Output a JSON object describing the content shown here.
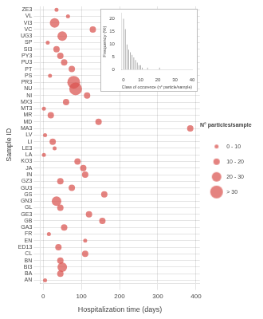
{
  "chart_data": [
    {
      "type": "scatter",
      "xlabel": "Hospitalization time (days)",
      "ylabel": "Sample ID",
      "categories": [
        "ZE3",
        "VL",
        "VI3",
        "VC",
        "UG3",
        "SP",
        "SI3",
        "PY3",
        "PU3",
        "PT",
        "PS",
        "PR3",
        "NU",
        "NI",
        "MX3",
        "MT3",
        "MR",
        "MD",
        "MA3",
        "LV",
        "LI",
        "LE3",
        "LA",
        "KO3",
        "JA",
        "IN",
        "GZ3",
        "GU3",
        "GS",
        "GN3",
        "GL",
        "GE3",
        "GB",
        "GA3",
        "FR",
        "EN",
        "ED13",
        "CL",
        "BN",
        "BI3",
        "BA",
        "AN"
      ],
      "values": [
        35,
        65,
        30,
        130,
        50,
        12,
        35,
        45,
        55,
        75,
        18,
        80,
        85,
        115,
        60,
        2,
        20,
        145,
        385,
        5,
        25,
        30,
        2,
        90,
        105,
        110,
        45,
        75,
        160,
        35,
        45,
        120,
        155,
        55,
        15,
        110,
        40,
        110,
        45,
        50,
        45,
        5
      ],
      "sizes": [
        8,
        5,
        22,
        12,
        25,
        8,
        12,
        14,
        14,
        12,
        5,
        35,
        32,
        10,
        18,
        3,
        12,
        14,
        14,
        8,
        10,
        8,
        3,
        12,
        10,
        12,
        14,
        10,
        10,
        22,
        14,
        18,
        10,
        14,
        8,
        8,
        18,
        10,
        16,
        28,
        12,
        3
      ],
      "size_bins": [
        {
          "name": "0 - 10",
          "min": 0,
          "max": 10
        },
        {
          "name": "10 - 20",
          "min": 10,
          "max": 20
        },
        {
          "name": "20 - 30",
          "min": 20,
          "max": 30
        },
        {
          "name": "> 30",
          "min": 30,
          "max": 9999
        }
      ],
      "legend_title": "N° particles/sample",
      "color": "#d9534f",
      "xlim": [
        -8,
        410
      ],
      "xticks": [
        0,
        100,
        200,
        300,
        400
      ],
      "grid": true,
      "legend": "right"
    },
    {
      "type": "bar",
      "xlabel": "Class of occurence (n° particle/sample)",
      "ylabel": "Frequency (%)",
      "x": [
        0,
        1,
        2,
        3,
        4,
        5,
        6,
        7,
        8,
        9,
        10,
        11,
        12,
        13,
        14,
        15,
        16,
        17,
        18,
        19,
        20,
        21,
        22,
        23,
        24,
        25,
        26,
        27,
        28,
        29,
        30,
        31,
        32,
        33,
        34,
        35,
        36,
        37,
        38,
        39
      ],
      "values": [
        20,
        16,
        10,
        8,
        7,
        6,
        5,
        4,
        3,
        2,
        2,
        1,
        0,
        0,
        1,
        0,
        0,
        0,
        0,
        0,
        0,
        1,
        0,
        0,
        0,
        0,
        0,
        0,
        0,
        0,
        0,
        0,
        0,
        0,
        0,
        0,
        0,
        0,
        0,
        0
      ],
      "color": "#999999",
      "xlim": [
        -1,
        40
      ],
      "xticks": [
        0,
        10,
        20,
        30,
        40
      ],
      "ylim": [
        0,
        22
      ],
      "yticks": [
        0,
        5,
        10,
        15,
        20
      ],
      "grid": false
    }
  ]
}
